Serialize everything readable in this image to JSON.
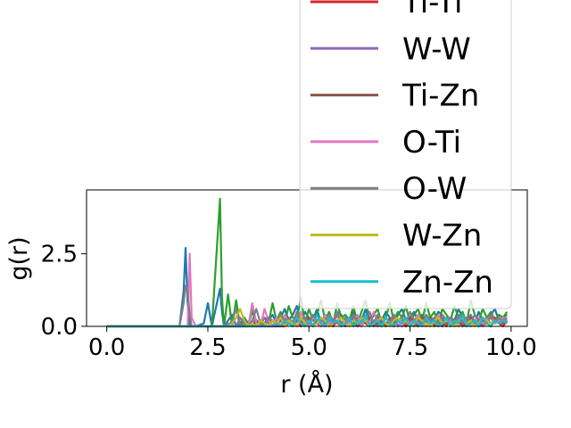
{
  "chart_data": {
    "type": "line",
    "xlabel": "r (Å)",
    "ylabel": "g(r)",
    "xlim": [
      -0.5,
      10.4
    ],
    "ylim": [
      0,
      4.7
    ],
    "xticks": [
      0.0,
      2.5,
      5.0,
      7.5,
      10.0
    ],
    "xtick_labels": [
      "0.0",
      "2.5",
      "5.0",
      "7.5",
      "10.0"
    ],
    "yticks": [
      0.0,
      2.5
    ],
    "ytick_labels": [
      "0.0",
      "2.5"
    ],
    "grid": false,
    "legend_position": "top-right, overlapping the plot",
    "x": [
      0.0,
      0.5,
      1.0,
      1.5,
      1.8,
      1.9,
      1.95,
      2.0,
      2.05,
      2.1,
      2.2,
      2.4,
      2.5,
      2.6,
      2.8,
      2.85,
      2.9,
      3.0,
      3.1,
      3.2,
      3.3,
      3.4,
      3.5,
      3.6,
      3.7,
      3.8,
      3.9,
      4.0,
      4.1,
      4.2,
      4.3,
      4.4,
      4.5,
      4.6,
      4.7,
      4.8,
      4.9,
      5.0,
      5.1,
      5.2,
      5.3,
      5.4,
      5.5,
      5.6,
      5.7,
      5.8,
      5.9,
      6.0,
      6.1,
      6.2,
      6.3,
      6.4,
      6.5,
      6.6,
      6.7,
      6.8,
      6.9,
      7.0,
      7.1,
      7.2,
      7.3,
      7.4,
      7.5,
      7.6,
      7.7,
      7.8,
      7.9,
      8.0,
      8.1,
      8.2,
      8.3,
      8.4,
      8.5,
      8.6,
      8.7,
      8.8,
      8.9,
      9.0,
      9.1,
      9.2,
      9.3,
      9.4,
      9.5,
      9.6,
      9.7,
      9.8,
      9.9
    ],
    "series": [
      {
        "color": "#1f77b4",
        "values": [
          0,
          0,
          0,
          0,
          0,
          1.2,
          2.7,
          0.8,
          0,
          0,
          0,
          0.1,
          0.8,
          0,
          1.3,
          0.5,
          0,
          0.2,
          0.4,
          0,
          0.1,
          0.3,
          0.1,
          0.5,
          0.2,
          0.1,
          0.3,
          0.2,
          0.4,
          0.1,
          0.3,
          0.6,
          0.2,
          0.4,
          0.7,
          0.1,
          0.5,
          0.3,
          0.2,
          0.6,
          0.1,
          0.4,
          0.3,
          0.2,
          0.5,
          0.4,
          0.1,
          0.2,
          0.5,
          0.3,
          0.2,
          0.6,
          0.1,
          0.4,
          0.3,
          0.2,
          0.5,
          0.3,
          0.1,
          0.4,
          0.6,
          0.2,
          0.3,
          0.5,
          0.2,
          0.4,
          0.1,
          0.3,
          0.2,
          0.5,
          0.4,
          0.1,
          0.3,
          0.2,
          0.6,
          0.3,
          0.2,
          0.4,
          0.1,
          0.5,
          0.2,
          0.3,
          0.4,
          0.6,
          0.2,
          0.3,
          0.4
        ]
      },
      {
        "color": "#ff7f0e",
        "values": [
          0,
          0,
          0,
          0,
          0,
          0,
          0,
          0,
          0,
          0,
          0,
          0,
          0,
          0,
          0,
          0,
          0,
          0,
          0,
          0,
          0,
          0,
          0,
          0.1,
          0,
          0,
          0.1,
          0,
          0,
          0.1,
          0.2,
          0,
          0.1,
          0,
          0.2,
          0,
          0.1,
          0.1,
          0,
          0.2,
          0,
          0.1,
          0,
          0.2,
          0.1,
          0,
          0.1,
          0.2,
          0,
          0.1,
          0,
          0.2,
          0.1,
          0,
          0.1,
          0.2,
          0,
          0.1,
          0,
          0.2,
          0.1,
          0,
          0.1,
          0.2,
          0,
          0.1,
          0,
          0.2,
          0.1,
          0,
          0.1,
          0.3,
          0,
          0.1,
          0,
          0.2,
          0.1,
          0,
          0.1,
          0.2,
          0,
          0.1,
          0,
          0.2,
          0.1,
          0.1,
          0.2
        ]
      },
      {
        "color": "#2ca02c",
        "values": [
          0,
          0,
          0,
          0,
          0,
          0,
          0,
          0,
          0,
          0,
          0,
          0,
          0,
          0,
          4.4,
          1.0,
          0,
          1.1,
          0,
          0.9,
          0,
          0.3,
          0,
          0.6,
          0,
          0.2,
          0.3,
          0.1,
          0.8,
          0.2,
          0.5,
          0.1,
          0.7,
          0.3,
          0.2,
          1.0,
          0.1,
          0.6,
          0.2,
          0.4,
          0.9,
          0.2,
          0.5,
          0.1,
          0.8,
          0.3,
          0.4,
          0.2,
          0.7,
          0.1,
          0.5,
          0.9,
          0.2,
          0.4,
          0.6,
          0.1,
          0.3,
          0.8,
          0.2,
          0.5,
          0.3,
          0.7,
          0.1,
          0.4,
          0.6,
          0.2,
          0.8,
          0.3,
          0.5,
          0.1,
          0.6,
          0.4,
          0.2,
          0.7,
          0.3,
          0.5,
          0.1,
          0.9,
          0.4,
          0.2,
          0.6,
          0.3,
          0.5,
          0.2,
          0.4,
          0.3,
          0.5
        ]
      },
      {
        "name": "Ti-Ti",
        "color": "#d62728",
        "values": [
          0,
          0,
          0,
          0,
          0,
          0,
          0,
          0,
          0,
          0,
          0,
          0,
          0,
          0,
          0,
          0,
          0,
          0,
          0,
          0,
          0,
          0,
          0,
          0,
          0,
          0,
          0,
          0,
          0,
          0,
          0,
          0,
          0.1,
          0,
          0.2,
          0,
          0.1,
          0,
          0.3,
          0.1,
          0,
          0.2,
          0.1,
          0,
          0.2,
          0.1,
          0,
          0.3,
          0.1,
          0,
          0.2,
          0.1,
          0,
          0.2,
          0.1,
          0,
          0.3,
          0.1,
          0,
          0.2,
          0.1,
          0,
          0.2,
          0.1,
          0,
          0.3,
          0.1,
          0,
          0.2,
          0.1,
          0,
          0.2,
          0.1,
          0,
          0.3,
          0.1,
          0,
          0.2,
          0.1,
          0,
          0.2,
          0.1,
          0,
          0.3,
          0.1,
          0,
          0.2
        ]
      },
      {
        "name": "W-W",
        "color": "#9467bd",
        "values": [
          0,
          0,
          0,
          0,
          0,
          0,
          0,
          0,
          0,
          0,
          0,
          0,
          0,
          0,
          0,
          0,
          0,
          0.1,
          0,
          0,
          0.3,
          0.1,
          0,
          0.2,
          0.1,
          0,
          0.3,
          0.1,
          0.2,
          0,
          0.4,
          0.1,
          0.2,
          0,
          0.3,
          0.1,
          0.2,
          0,
          0.4,
          0.1,
          0.3,
          0,
          0.2,
          0.1,
          0.4,
          0,
          0.2,
          0.1,
          0.3,
          0,
          0.2,
          0.4,
          0.1,
          0.2,
          0,
          0.3,
          0.1,
          0.2,
          0.4,
          0,
          0.2,
          0.1,
          0.3,
          0,
          0.2,
          0.1,
          0.4,
          0.1,
          0.2,
          0,
          0.3,
          0.1,
          0.2,
          0,
          0.3,
          0.1,
          0.2,
          0.4,
          0.1,
          0.2,
          0,
          0.3,
          0.1,
          0.2,
          0.1,
          0.3,
          0.2
        ]
      },
      {
        "name": "Ti-Zn",
        "color": "#8c564b",
        "values": [
          0,
          0,
          0,
          0,
          0,
          0,
          0,
          0,
          0,
          0,
          0,
          0,
          0,
          0,
          0,
          0,
          0,
          0,
          0,
          0,
          0,
          0,
          0.1,
          0,
          0.2,
          0,
          0.1,
          0.3,
          0,
          0.1,
          0.2,
          0,
          0.3,
          0.1,
          0,
          0.2,
          0.1,
          0.3,
          0,
          0.2,
          0.1,
          0,
          0.3,
          0.1,
          0.2,
          0,
          0.1,
          0.3,
          0.2,
          0,
          0.1,
          0.2,
          0.3,
          0,
          0.1,
          0.2,
          0,
          0.3,
          0.1,
          0.2,
          0,
          0.1,
          0.3,
          0.2,
          0,
          0.1,
          0.2,
          0.3,
          0,
          0.1,
          0.2,
          0,
          0.3,
          0.1,
          0.2,
          0,
          0.1,
          0.3,
          0.2,
          0,
          0.1,
          0.2,
          0.3,
          0.1,
          0.2,
          0.1,
          0.2
        ]
      },
      {
        "name": "O-Ti",
        "color": "#e377c2",
        "values": [
          0,
          0,
          0,
          0,
          0,
          0,
          0,
          0,
          2.5,
          0.3,
          0,
          0,
          0,
          0,
          0,
          0,
          0,
          0,
          0,
          0,
          0,
          0.1,
          0,
          0.8,
          0.1,
          0,
          0.6,
          0.2,
          0,
          0.3,
          0,
          0.4,
          0.1,
          0.2,
          0,
          0.5,
          0.1,
          0,
          0.3,
          0.2,
          0,
          0.4,
          0.1,
          0.2,
          0.5,
          0,
          0.3,
          0.1,
          0.2,
          0.4,
          0,
          0.3,
          0.1,
          0.5,
          0.2,
          0,
          0.3,
          0.1,
          0.4,
          0.2,
          0,
          0.3,
          0.1,
          0.2,
          0.4,
          0.1,
          0.3,
          0,
          0.2,
          0.4,
          0.1,
          0.3,
          0.2,
          0.1,
          0.4,
          0.2,
          0.3,
          0.1,
          0.2,
          0.3,
          0.1,
          0.2,
          0.4,
          0.1,
          0.2,
          0.3,
          0.2
        ]
      },
      {
        "name": "O-W",
        "color": "#7f7f7f",
        "values": [
          0,
          0,
          0,
          0,
          0,
          0.8,
          1.4,
          1.2,
          0.4,
          0,
          0,
          0,
          0,
          0,
          0,
          0,
          0,
          0,
          0.2,
          0.6,
          0,
          0.1,
          0,
          0.2,
          0.6,
          0.1,
          0,
          0.3,
          0.2,
          0.1,
          0.4,
          0.2,
          0.3,
          0.1,
          0.5,
          0.2,
          0.3,
          0.1,
          0.4,
          0.2,
          0.3,
          0.1,
          0.4,
          0.2,
          0.5,
          0.1,
          0.3,
          0.2,
          0.4,
          0.1,
          0.3,
          0.2,
          0.5,
          0.1,
          0.4,
          0.2,
          0.3,
          0.1,
          0.4,
          0.2,
          0.3,
          0.1,
          0.5,
          0.2,
          0.3,
          0.1,
          0.4,
          0.2,
          0.3,
          0.1,
          0.4,
          0.2,
          0.3,
          0.1,
          0.4,
          0.2,
          0.3,
          0.1,
          0.4,
          0.2,
          0.3,
          0.1,
          0.4,
          0.2,
          0.3,
          0.2,
          0.3
        ]
      },
      {
        "name": "W-Zn",
        "color": "#bcbd22",
        "values": [
          0,
          0,
          0,
          0,
          0,
          0,
          0,
          0,
          0,
          0,
          0,
          0,
          0,
          0,
          0,
          0,
          0,
          0,
          0.1,
          0.3,
          0.6,
          0.2,
          0,
          0.1,
          0,
          0.2,
          0.1,
          0,
          0.2,
          0.1,
          0.3,
          0,
          0.2,
          0.1,
          0,
          0.3,
          0.1,
          0.2,
          0,
          0.1,
          0.3,
          0.2,
          0,
          0.1,
          0.2,
          0.3,
          0.1,
          0,
          0.2,
          0.1,
          0.3,
          0.2,
          0,
          0.1,
          0.2,
          0.3,
          0.1,
          0,
          0.2,
          0.3,
          0.1,
          0.2,
          0,
          0.1,
          0.3,
          0.2,
          0.1,
          0,
          0.2,
          0.3,
          0.1,
          0.2,
          0.1,
          0,
          0.2,
          0.3,
          0.1,
          0.2,
          0,
          0.1,
          0.3,
          0.2,
          0.1,
          0.2,
          0.1,
          0.2,
          0.1
        ]
      },
      {
        "name": "Zn-Zn",
        "color": "#17becf",
        "values": [
          0,
          0,
          0,
          0,
          0,
          0,
          0,
          0,
          0,
          0,
          0,
          0,
          0,
          0,
          0,
          0,
          0,
          0,
          0,
          0,
          0,
          0,
          0,
          0,
          0,
          0,
          0,
          0,
          0,
          0.1,
          0,
          0.2,
          0.1,
          0,
          0.3,
          0.1,
          0,
          0.2,
          0,
          0.4,
          0.1,
          0,
          0.3,
          0.1,
          0.2,
          0,
          0.1,
          0.3,
          0,
          0.2,
          0.1,
          0.4,
          0,
          0.1,
          0.2,
          0,
          0.3,
          0.1,
          0,
          0.2,
          0.1,
          0.3,
          0,
          0.2,
          0.1,
          0,
          0.3,
          0.1,
          0.2,
          0,
          0.1,
          0.3,
          0,
          0.2,
          0.1,
          0.4,
          0,
          0.1,
          0.2,
          0,
          0.3,
          0.1,
          0,
          0.2,
          0.1,
          0.2,
          0.1
        ]
      }
    ],
    "legend": [
      {
        "label": "Ti-Ti",
        "color": "#d62728"
      },
      {
        "label": "W-W",
        "color": "#9467bd"
      },
      {
        "label": "Ti-Zn",
        "color": "#8c564b"
      },
      {
        "label": "O-Ti",
        "color": "#e377c2"
      },
      {
        "label": "O-W",
        "color": "#7f7f7f"
      },
      {
        "label": "W-Zn",
        "color": "#bcbd22"
      },
      {
        "label": "Zn-Zn",
        "color": "#17becf"
      }
    ]
  }
}
